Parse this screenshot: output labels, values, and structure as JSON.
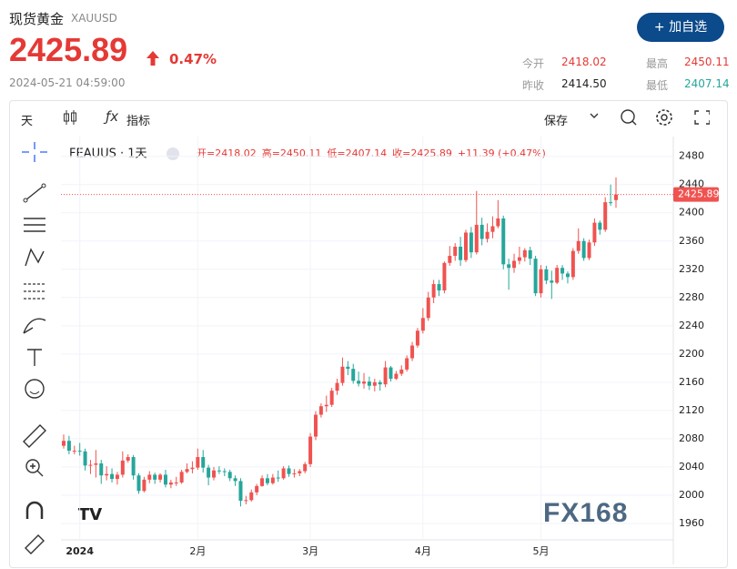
{
  "header": {
    "name": "现货黄金",
    "code": "XAUUSD",
    "price": 2425.89,
    "change": "0.47%",
    "datetime": "2024-05-21 04:59:00",
    "button": "+ 加自选",
    "stats": [
      {
        "label": "今开",
        "value": "2418.02"
      },
      {
        "label": "最高",
        "value": "2450.11"
      },
      {
        "label": "昨收",
        "value": "2414.50"
      },
      {
        "label": "最低",
        "value": "2407.14"
      }
    ]
  },
  "toolbar": {
    "interval": "天",
    "indicators": "指标",
    "save": "保存"
  },
  "watermark": "FX168",
  "chart_data": {
    "type": "candlestick",
    "title": "FEAUUS · 1天",
    "ohlc_labels": [
      "开=2418.02",
      "高=2450.11",
      "低=2407.14",
      "收=2425.89",
      "+11.39 (+0.47%)"
    ],
    "categories": [
      null,
      null,
      null,
      "2024",
      null,
      null,
      null,
      null,
      null,
      null,
      null,
      null,
      null,
      null,
      null,
      null,
      null,
      null,
      null,
      null,
      null,
      null,
      null,
      null,
      null,
      "2月",
      null,
      null,
      null,
      null,
      null,
      null,
      null,
      null,
      null,
      null,
      null,
      null,
      null,
      null,
      null,
      null,
      null,
      null,
      null,
      null,
      "3月",
      null,
      null,
      null,
      null,
      null,
      null,
      null,
      null,
      null,
      null,
      null,
      null,
      null,
      null,
      null,
      null,
      null,
      null,
      null,
      null,
      "4月",
      null,
      null,
      null,
      null,
      null,
      null,
      null,
      null,
      null,
      null,
      null,
      null,
      null,
      null,
      null,
      null,
      null,
      null,
      null,
      null,
      null,
      "5月",
      null,
      null,
      null,
      null,
      null,
      null,
      null,
      null,
      null,
      null,
      null,
      null,
      null,
      null
    ],
    "open": [
      2070,
      2077,
      2063,
      2063,
      2062,
      2042,
      2043,
      2045,
      2028,
      2030,
      2023,
      2029,
      2049,
      2054,
      2028,
      2006,
      2022,
      2029,
      2022,
      2029,
      2015,
      2018,
      2018,
      2033,
      2037,
      2039,
      2054,
      2039,
      2025,
      2035,
      2034,
      2033,
      2024,
      2020,
      1992,
      1993,
      2004,
      2013,
      2024,
      2017,
      2025,
      2024,
      2038,
      2030,
      2031,
      2034,
      2044,
      2083,
      2114,
      2126,
      2128,
      2148,
      2159,
      2182,
      2179,
      2162,
      2158,
      2161,
      2155,
      2160,
      2157,
      2181,
      2165,
      2172,
      2178,
      2194,
      2212,
      2233,
      2251,
      2280,
      2299,
      2290,
      2329,
      2339,
      2352,
      2333,
      2372,
      2344,
      2383,
      2363,
      2373,
      2381,
      2392,
      2327,
      2322,
      2332,
      2337,
      2347,
      2335,
      2286,
      2320,
      2304,
      2301,
      2322,
      2314,
      2309,
      2346,
      2360,
      2336,
      2358,
      2386,
      2376,
      2415,
      2418.02
    ],
    "high": [
      2086,
      2084,
      2070,
      2074,
      2066,
      2050,
      2064,
      2050,
      2041,
      2038,
      2033,
      2062,
      2058,
      2057,
      2031,
      2026,
      2034,
      2032,
      2031,
      2036,
      2022,
      2026,
      2036,
      2045,
      2048,
      2066,
      2064,
      2043,
      2040,
      2041,
      2038,
      2036,
      2028,
      2024,
      1999,
      2008,
      2016,
      2028,
      2030,
      2030,
      2035,
      2041,
      2042,
      2037,
      2037,
      2047,
      2088,
      2119,
      2130,
      2141,
      2152,
      2165,
      2195,
      2190,
      2186,
      2175,
      2173,
      2168,
      2165,
      2163,
      2190,
      2183,
      2176,
      2184,
      2198,
      2217,
      2237,
      2265,
      2288,
      2305,
      2305,
      2331,
      2353,
      2357,
      2366,
      2376,
      2380,
      2431,
      2393,
      2385,
      2395,
      2418,
      2396,
      2335,
      2342,
      2352,
      2350,
      2352,
      2339,
      2326,
      2325,
      2318,
      2326,
      2326,
      2317,
      2350,
      2378,
      2364,
      2362,
      2392,
      2389,
      2422,
      2440,
      2450.11
    ],
    "low": [
      2066,
      2058,
      2058,
      2056,
      2035,
      2030,
      2025,
      2016,
      2021,
      2018,
      2015,
      2025,
      2046,
      2022,
      2002,
      2004,
      2017,
      2016,
      2018,
      2011,
      2010,
      2013,
      2016,
      2031,
      2031,
      2036,
      2032,
      2014,
      2021,
      2030,
      2027,
      2020,
      2013,
      1984,
      1987,
      1991,
      2000,
      2012,
      2014,
      2015,
      2019,
      2022,
      2026,
      2025,
      2027,
      2031,
      2040,
      2078,
      2110,
      2118,
      2125,
      2142,
      2155,
      2170,
      2158,
      2154,
      2151,
      2149,
      2147,
      2148,
      2153,
      2161,
      2163,
      2169,
      2175,
      2190,
      2209,
      2229,
      2247,
      2272,
      2282,
      2286,
      2325,
      2332,
      2325,
      2330,
      2336,
      2341,
      2354,
      2358,
      2364,
      2378,
      2320,
      2291,
      2315,
      2327,
      2331,
      2326,
      2282,
      2280,
      2299,
      2278,
      2299,
      2305,
      2300,
      2305,
      2342,
      2332,
      2333,
      2353,
      2369,
      2373,
      2410,
      2407.14
    ],
    "close": [
      2077,
      2063,
      2063,
      2062,
      2042,
      2043,
      2045,
      2028,
      2030,
      2023,
      2029,
      2049,
      2054,
      2028,
      2006,
      2022,
      2029,
      2022,
      2029,
      2015,
      2018,
      2018,
      2033,
      2037,
      2039,
      2054,
      2039,
      2025,
      2035,
      2034,
      2033,
      2024,
      2020,
      1992,
      1993,
      2004,
      2013,
      2024,
      2017,
      2025,
      2024,
      2038,
      2030,
      2031,
      2034,
      2044,
      2083,
      2114,
      2126,
      2128,
      2148,
      2159,
      2182,
      2179,
      2162,
      2158,
      2161,
      2155,
      2160,
      2157,
      2181,
      2165,
      2172,
      2178,
      2194,
      2212,
      2233,
      2251,
      2280,
      2299,
      2290,
      2329,
      2339,
      2352,
      2333,
      2372,
      2344,
      2383,
      2363,
      2373,
      2381,
      2392,
      2327,
      2322,
      2332,
      2337,
      2347,
      2335,
      2286,
      2320,
      2304,
      2301,
      2322,
      2314,
      2309,
      2346,
      2360,
      2336,
      2358,
      2386,
      2376,
      2415,
      2414.5,
      2425.89
    ],
    "up_color": "#ef5350",
    "down_color": "#26a69a",
    "ylim": [
      1938,
      2508
    ],
    "yticks": [
      1960,
      2000,
      2040,
      2080,
      2120,
      2160,
      2200,
      2240,
      2280,
      2320,
      2360,
      2400,
      2440,
      2480
    ],
    "grid": true,
    "last_price": 2425.89
  }
}
